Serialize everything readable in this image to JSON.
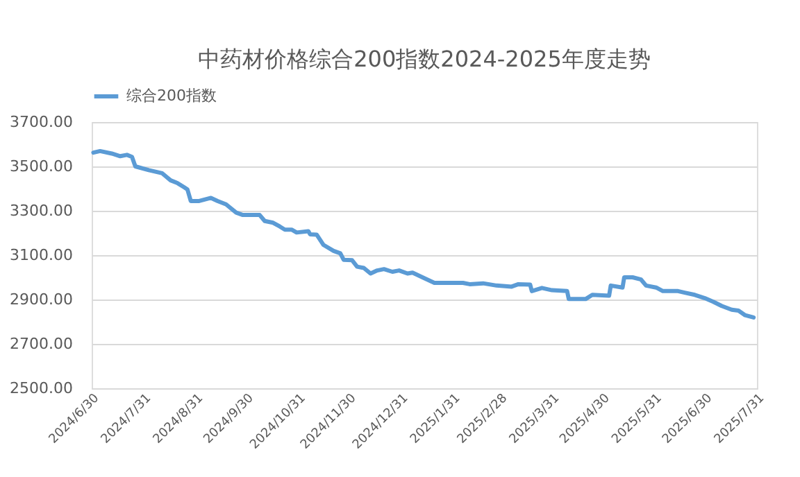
{
  "chart_data": {
    "type": "line",
    "title": "中药材价格综合200指数2024-2025年度走势",
    "legend": "top",
    "grid": "y",
    "line_style": "solid",
    "marker": "none",
    "xlim": [
      "2024-06-30",
      "2025-07-31"
    ],
    "xticks": [
      {
        "value": "2024-06-30",
        "label": "2024/6/30"
      },
      {
        "value": "2024-07-31",
        "label": "2024/7/31"
      },
      {
        "value": "2024-08-31",
        "label": "2024/8/31"
      },
      {
        "value": "2024-09-30",
        "label": "2024/9/30"
      },
      {
        "value": "2024-10-31",
        "label": "2024/10/31"
      },
      {
        "value": "2024-11-30",
        "label": "2024/11/30"
      },
      {
        "value": "2024-12-31",
        "label": "2024/12/31"
      },
      {
        "value": "2025-01-31",
        "label": "2025/1/31"
      },
      {
        "value": "2025-02-28",
        "label": "2025/2/28"
      },
      {
        "value": "2025-03-31",
        "label": "2025/3/31"
      },
      {
        "value": "2025-04-30",
        "label": "2025/4/30"
      },
      {
        "value": "2025-05-31",
        "label": "2025/5/31"
      },
      {
        "value": "2025-06-30",
        "label": "2025/6/30"
      },
      {
        "value": "2025-07-31",
        "label": "2025/7/31"
      }
    ],
    "ylim": [
      2500,
      3700
    ],
    "yticks": [
      {
        "value": 2500,
        "label": "2500.00"
      },
      {
        "value": 2700,
        "label": "2700.00"
      },
      {
        "value": 2900,
        "label": "2900.00"
      },
      {
        "value": 3100,
        "label": "3100.00"
      },
      {
        "value": 3300,
        "label": "3300.00"
      },
      {
        "value": 3500,
        "label": "3500.00"
      },
      {
        "value": 3700,
        "label": "3700.00"
      }
    ],
    "x": [
      "2024-07-01",
      "2024-07-05",
      "2024-07-12",
      "2024-07-17",
      "2024-07-21",
      "2024-07-24",
      "2024-07-26",
      "2024-08-03",
      "2024-08-11",
      "2024-08-16",
      "2024-08-20",
      "2024-08-24",
      "2024-08-26",
      "2024-08-28",
      "2024-09-02",
      "2024-09-09",
      "2024-09-13",
      "2024-09-18",
      "2024-09-24",
      "2024-09-28",
      "2024-10-08",
      "2024-10-11",
      "2024-10-16",
      "2024-10-20",
      "2024-10-23",
      "2024-10-27",
      "2024-10-30",
      "2024-11-06",
      "2024-11-07",
      "2024-11-11",
      "2024-11-15",
      "2024-11-21",
      "2024-11-25",
      "2024-11-27",
      "2024-12-02",
      "2024-12-05",
      "2024-12-09",
      "2024-12-13",
      "2024-12-17",
      "2024-12-21",
      "2024-12-26",
      "2024-12-30",
      "2025-01-04",
      "2025-01-07",
      "2025-01-14",
      "2025-01-20",
      "2025-02-06",
      "2025-02-10",
      "2025-02-18",
      "2025-02-26",
      "2025-03-07",
      "2025-03-11",
      "2025-03-18",
      "2025-03-19",
      "2025-03-25",
      "2025-03-31",
      "2025-04-09",
      "2025-04-10",
      "2025-04-20",
      "2025-04-24",
      "2025-05-04",
      "2025-05-05",
      "2025-05-12",
      "2025-05-13",
      "2025-05-18",
      "2025-05-23",
      "2025-05-26",
      "2025-06-01",
      "2025-06-05",
      "2025-06-14",
      "2025-06-18",
      "2025-06-24",
      "2025-06-30",
      "2025-07-05",
      "2025-07-10",
      "2025-07-16",
      "2025-07-20",
      "2025-07-24",
      "2025-07-29"
    ],
    "series": [
      {
        "name": "综合200指数",
        "color": "#5b9bd5",
        "values": [
          3562,
          3569,
          3558,
          3546,
          3552,
          3543,
          3500,
          3483,
          3469,
          3437,
          3425,
          3406,
          3396,
          3344,
          3344,
          3358,
          3344,
          3329,
          3292,
          3281,
          3281,
          3254,
          3246,
          3229,
          3215,
          3215,
          3202,
          3208,
          3194,
          3192,
          3146,
          3119,
          3108,
          3079,
          3077,
          3048,
          3042,
          3017,
          3031,
          3037,
          3025,
          3031,
          3017,
          3021,
          2996,
          2975,
          2975,
          2969,
          2973,
          2963,
          2958,
          2969,
          2967,
          2938,
          2952,
          2942,
          2938,
          2902,
          2902,
          2921,
          2917,
          2963,
          2954,
          3000,
          3000,
          2990,
          2963,
          2954,
          2938,
          2938,
          2931,
          2921,
          2906,
          2890,
          2871,
          2854,
          2850,
          2829,
          2819
        ]
      }
    ]
  }
}
